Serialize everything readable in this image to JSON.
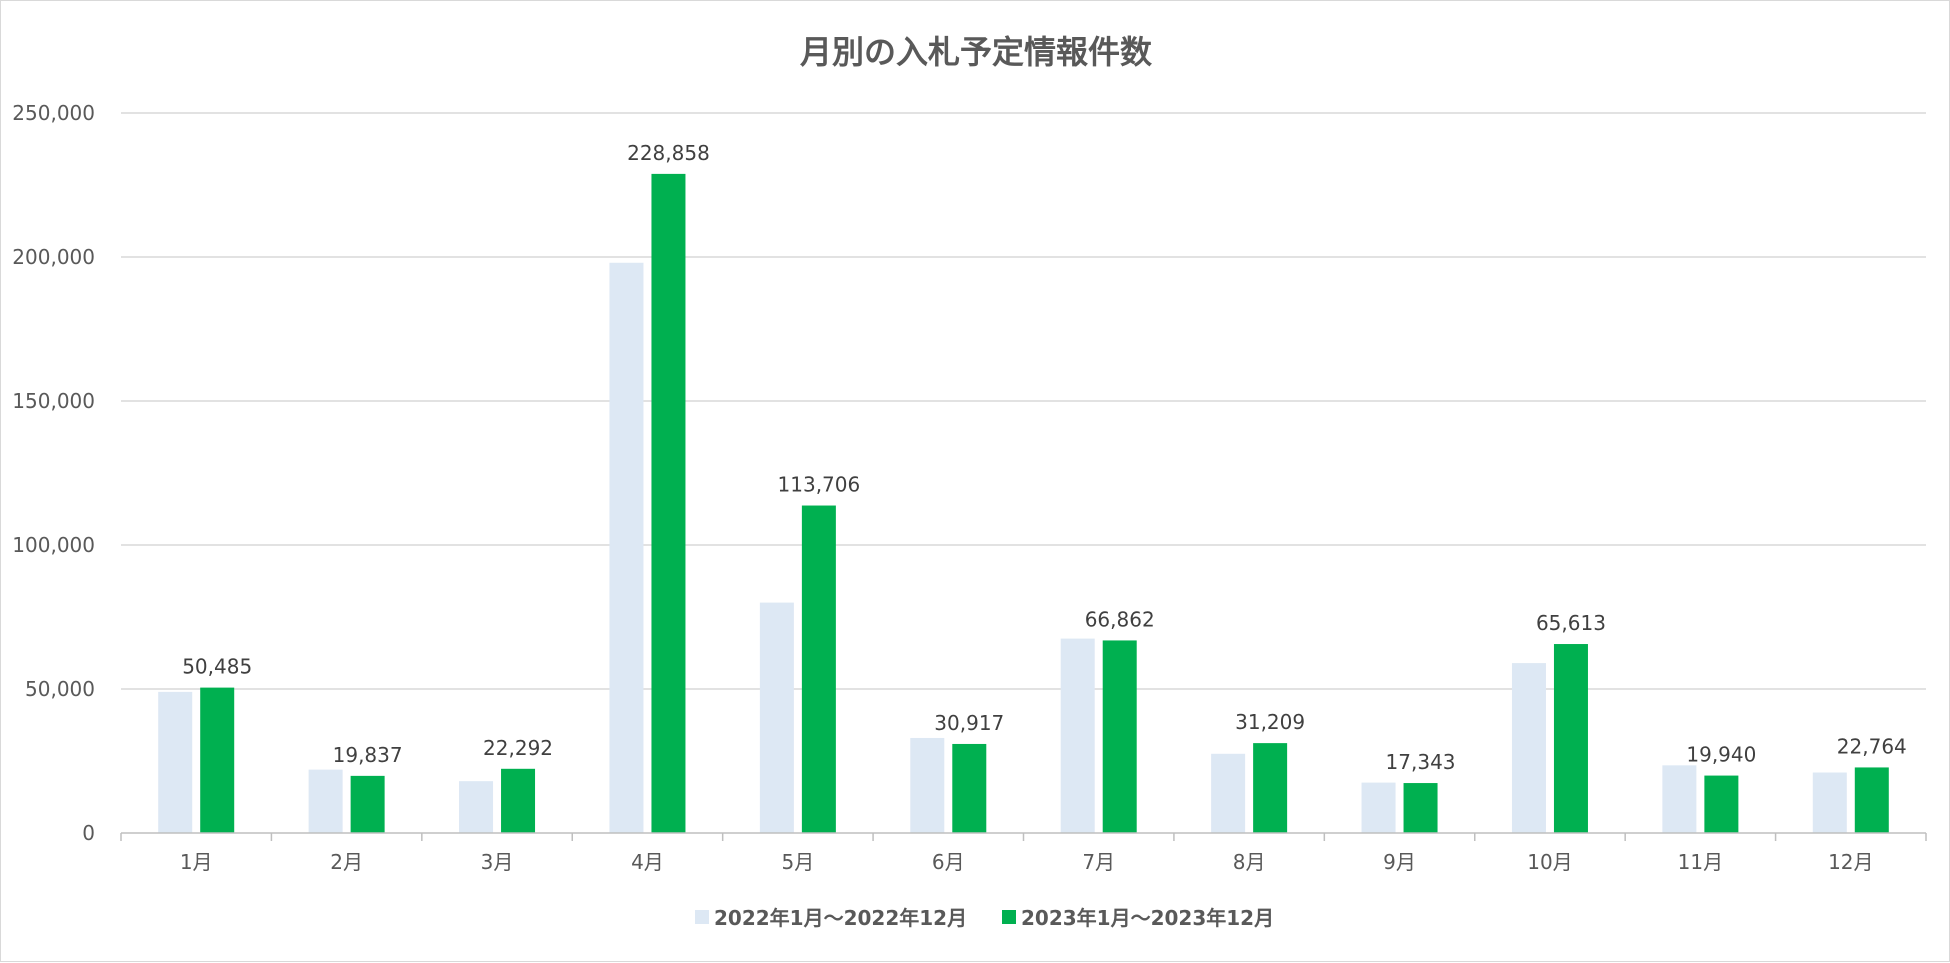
{
  "chart_data": {
    "type": "bar",
    "title": "月別の入札予定情報件数",
    "xlabel": "",
    "ylabel": "",
    "categories": [
      "1月",
      "2月",
      "3月",
      "4月",
      "5月",
      "6月",
      "7月",
      "8月",
      "9月",
      "10月",
      "11月",
      "12月"
    ],
    "series": [
      {
        "name": "2022年1月～2022年12月",
        "color": "#dde8f4",
        "values": [
          49000,
          22000,
          18000,
          198000,
          80000,
          33000,
          67500,
          27500,
          17500,
          59000,
          23500,
          21000
        ],
        "labels": []
      },
      {
        "name": "2023年1月～2023年12月",
        "color": "#00b050",
        "values": [
          50485,
          19837,
          22292,
          228858,
          113706,
          30917,
          66862,
          31209,
          17343,
          65613,
          19940,
          22764
        ],
        "labels": [
          "50,485",
          "19,837",
          "22,292",
          "228,858",
          "113,706",
          "30,917",
          "66,862",
          "31,209",
          "17,343",
          "65,613",
          "19,940",
          "22,764"
        ]
      }
    ],
    "ylim": [
      0,
      250000
    ],
    "yticks": [
      0,
      50000,
      100000,
      150000,
      200000,
      250000
    ],
    "ytick_labels": [
      "0",
      "50,000",
      "100,000",
      "150,000",
      "200,000",
      "250,000"
    ],
    "grid": true,
    "legend_position": "bottom"
  }
}
